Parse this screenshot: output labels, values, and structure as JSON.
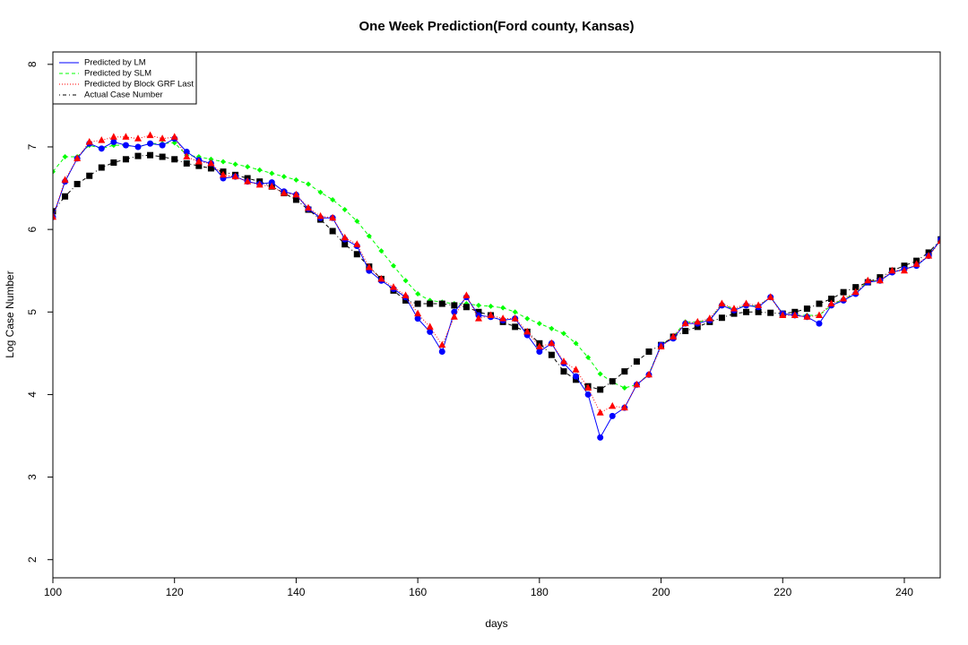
{
  "chart_data": {
    "type": "line",
    "title": "One Week Prediction(Ford county, Kansas)",
    "x_label": "days",
    "y_label": "Log Case Number",
    "x": [
      100,
      102,
      104,
      106,
      108,
      110,
      112,
      114,
      116,
      118,
      120,
      122,
      124,
      126,
      128,
      130,
      132,
      134,
      136,
      138,
      140,
      142,
      144,
      146,
      148,
      150,
      152,
      154,
      156,
      158,
      160,
      162,
      164,
      166,
      168,
      170,
      172,
      174,
      176,
      178,
      180,
      182,
      184,
      186,
      188,
      190,
      192,
      194,
      196,
      198,
      200,
      202,
      204,
      206,
      208,
      210,
      212,
      214,
      216,
      218,
      220,
      222,
      224,
      226,
      228,
      230,
      232,
      234,
      236,
      238,
      240,
      242,
      244,
      246
    ],
    "xlim": [
      100,
      245.9
    ],
    "xticks": [
      100,
      120,
      140,
      160,
      180,
      200,
      220,
      240
    ],
    "ylim": [
      1.78,
      8.15
    ],
    "yticks": [
      2,
      3,
      4,
      5,
      6,
      7,
      8
    ],
    "legend": "top-left",
    "series": [
      {
        "name": "Predicted by LM",
        "color": "#0000ff",
        "line": "solid",
        "marker": "circle",
        "values": [
          6.15,
          6.58,
          6.86,
          7.04,
          6.98,
          7.06,
          7.02,
          7.0,
          7.04,
          7.02,
          7.1,
          6.94,
          6.84,
          6.8,
          6.62,
          6.64,
          6.58,
          6.55,
          6.57,
          6.46,
          6.42,
          6.25,
          6.14,
          6.14,
          5.88,
          5.8,
          5.5,
          5.38,
          5.28,
          5.18,
          4.92,
          4.76,
          4.52,
          5.0,
          5.18,
          4.96,
          4.94,
          4.9,
          4.92,
          4.72,
          4.52,
          4.62,
          4.38,
          4.22,
          4.0,
          3.48,
          3.74,
          3.84,
          4.12,
          4.24,
          4.6,
          4.68,
          4.86,
          4.86,
          4.9,
          5.08,
          5.02,
          5.08,
          5.06,
          5.18,
          4.98,
          4.96,
          4.94,
          4.86,
          5.08,
          5.14,
          5.22,
          5.36,
          5.38,
          5.48,
          5.52,
          5.56,
          5.68,
          5.88
        ]
      },
      {
        "name": "Predicted by SLM",
        "color": "#00ff00",
        "line": "dashed",
        "marker": "diamond",
        "values": [
          6.7,
          6.88,
          6.88,
          7.02,
          6.98,
          7.02,
          7.02,
          7.0,
          7.04,
          7.04,
          7.05,
          6.9,
          6.88,
          6.85,
          6.82,
          6.79,
          6.76,
          6.72,
          6.68,
          6.64,
          6.6,
          6.55,
          6.45,
          6.36,
          6.24,
          6.1,
          5.92,
          5.74,
          5.56,
          5.38,
          5.22,
          5.14,
          5.12,
          5.1,
          5.1,
          5.08,
          5.07,
          5.05,
          5.0,
          4.92,
          4.86,
          4.8,
          4.74,
          4.62,
          4.45,
          4.25,
          4.15,
          4.08,
          4.12,
          4.25,
          4.6,
          4.7,
          4.88,
          4.88,
          4.9,
          5.1,
          5.03,
          5.08,
          5.07,
          5.18,
          4.98,
          4.96,
          4.96,
          4.96,
          5.08,
          5.16,
          5.22,
          5.38,
          5.38,
          5.48,
          5.52,
          5.56,
          5.68,
          5.88
        ]
      },
      {
        "name": "Predicted by Block GRF Last",
        "color": "#ff0000",
        "line": "dotted",
        "marker": "triangle",
        "values": [
          6.15,
          6.6,
          6.86,
          7.06,
          7.08,
          7.12,
          7.12,
          7.1,
          7.14,
          7.1,
          7.12,
          6.88,
          6.82,
          6.8,
          6.66,
          6.64,
          6.58,
          6.54,
          6.52,
          6.44,
          6.42,
          6.26,
          6.16,
          6.14,
          5.9,
          5.82,
          5.54,
          5.4,
          5.3,
          5.2,
          4.98,
          4.82,
          4.6,
          4.94,
          5.2,
          4.92,
          4.96,
          4.92,
          4.92,
          4.76,
          4.58,
          4.62,
          4.4,
          4.3,
          4.08,
          3.78,
          3.86,
          3.84,
          4.12,
          4.24,
          4.58,
          4.7,
          4.86,
          4.88,
          4.92,
          5.1,
          5.04,
          5.1,
          5.08,
          5.18,
          4.96,
          4.96,
          4.94,
          4.96,
          5.1,
          5.16,
          5.24,
          5.38,
          5.38,
          5.5,
          5.5,
          5.58,
          5.68,
          5.86
        ]
      },
      {
        "name": "Actual Case Number",
        "color": "#000000",
        "line": "dotdash",
        "marker": "square",
        "values": [
          6.22,
          6.4,
          6.55,
          6.65,
          6.75,
          6.81,
          6.85,
          6.89,
          6.9,
          6.88,
          6.85,
          6.8,
          6.77,
          6.74,
          6.7,
          6.66,
          6.62,
          6.58,
          6.52,
          6.44,
          6.36,
          6.24,
          6.12,
          5.98,
          5.82,
          5.7,
          5.55,
          5.4,
          5.26,
          5.14,
          5.1,
          5.1,
          5.1,
          5.08,
          5.06,
          5.0,
          4.96,
          4.88,
          4.82,
          4.76,
          4.62,
          4.48,
          4.28,
          4.18,
          4.1,
          4.06,
          4.16,
          4.28,
          4.4,
          4.52,
          4.6,
          4.7,
          4.77,
          4.82,
          4.88,
          4.93,
          4.98,
          5.0,
          5.0,
          4.99,
          4.98,
          5.0,
          5.04,
          5.1,
          5.16,
          5.24,
          5.3,
          5.36,
          5.42,
          5.5,
          5.56,
          5.62,
          5.72,
          5.88
        ]
      }
    ]
  }
}
